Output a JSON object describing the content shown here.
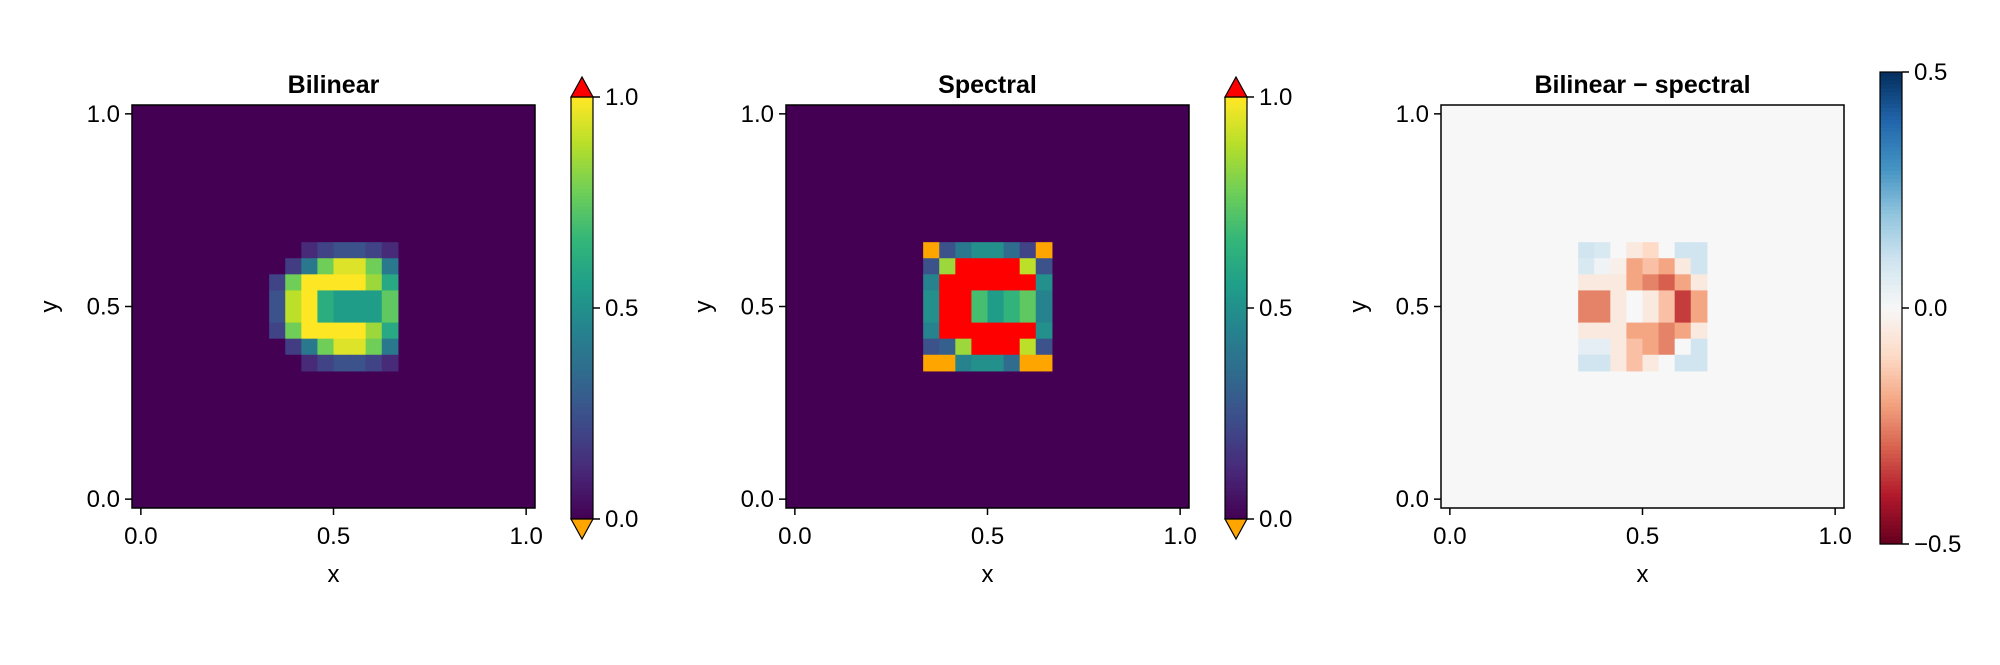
{
  "colors": {
    "background": "#ffffff",
    "viridis_low": "#440154",
    "viridis_high": "#fde725",
    "lowclip": "#ffa500",
    "highclip": "#ff0000",
    "rdbu_low": "#67001f",
    "rdbu_mid": "#f7f7f7",
    "rdbu_high": "#053061"
  },
  "chart_data": [
    {
      "type": "heatmap",
      "title": "Bilinear",
      "xlabel": "x",
      "ylabel": "y",
      "xlim": [
        0,
        1
      ],
      "ylim": [
        0,
        1
      ],
      "xticks": [
        "0.0",
        "0.5",
        "1.0"
      ],
      "yticks": [
        "0.0",
        "0.5",
        "1.0"
      ],
      "grid": false,
      "colormap": "viridis",
      "colorrange": [
        0,
        1
      ],
      "colorbar_ticks": [
        "0.0",
        "0.5",
        "1.0"
      ],
      "colorbar_clip_markers": true,
      "block_x_range": [
        0.333,
        0.667
      ],
      "block_y_range": [
        0.333,
        0.667
      ],
      "values": [
        [
          0.0,
          0.0,
          0.12,
          0.2,
          0.25,
          0.25,
          0.2,
          0.12
        ],
        [
          0.0,
          0.18,
          0.4,
          0.78,
          0.95,
          0.95,
          0.78,
          0.4
        ],
        [
          0.2,
          0.78,
          1.0,
          1.0,
          1.0,
          1.0,
          0.85,
          0.6
        ],
        [
          0.25,
          0.9,
          1.0,
          0.62,
          0.55,
          0.55,
          0.55,
          0.75
        ],
        [
          0.25,
          0.9,
          1.0,
          0.62,
          0.55,
          0.55,
          0.55,
          0.75
        ],
        [
          0.2,
          0.78,
          1.0,
          1.0,
          1.0,
          1.0,
          0.85,
          0.6
        ],
        [
          0.0,
          0.18,
          0.4,
          0.78,
          0.95,
          0.95,
          0.78,
          0.4
        ],
        [
          0.0,
          0.0,
          0.12,
          0.2,
          0.25,
          0.25,
          0.2,
          0.12
        ]
      ]
    },
    {
      "type": "heatmap",
      "title": "Spectral",
      "xlabel": "x",
      "ylabel": "y",
      "xlim": [
        0,
        1
      ],
      "ylim": [
        0,
        1
      ],
      "xticks": [
        "0.0",
        "0.5",
        "1.0"
      ],
      "yticks": [
        "0.0",
        "0.5",
        "1.0"
      ],
      "grid": false,
      "colormap": "viridis",
      "colorrange": [
        0,
        1
      ],
      "colorbar_ticks": [
        "0.0",
        "0.5",
        "1.0"
      ],
      "colorbar_clip_markers": true,
      "block_x_range": [
        0.333,
        0.667
      ],
      "block_y_range": [
        0.333,
        0.667
      ],
      "values": [
        [
          -0.1,
          0.25,
          0.4,
          0.5,
          0.5,
          0.35,
          0.2,
          -0.1
        ],
        [
          0.25,
          0.85,
          1.2,
          1.2,
          1.1,
          1.2,
          0.9,
          0.25
        ],
        [
          0.45,
          1.2,
          1.2,
          1.2,
          1.2,
          1.2,
          1.2,
          0.5
        ],
        [
          0.5,
          1.2,
          1.2,
          0.7,
          0.55,
          0.65,
          0.75,
          0.45
        ],
        [
          0.5,
          1.2,
          1.2,
          0.7,
          0.55,
          0.65,
          0.75,
          0.45
        ],
        [
          0.45,
          1.2,
          1.2,
          1.2,
          1.2,
          1.2,
          1.2,
          0.5
        ],
        [
          0.25,
          0.3,
          0.85,
          1.2,
          1.2,
          1.2,
          0.9,
          0.25
        ],
        [
          -0.1,
          -0.1,
          0.45,
          0.5,
          0.5,
          0.35,
          -0.1,
          -0.1
        ]
      ]
    },
    {
      "type": "heatmap",
      "title": "Bilinear − spectral",
      "xlabel": "x",
      "ylabel": "y",
      "xlim": [
        0,
        1
      ],
      "ylim": [
        0,
        1
      ],
      "xticks": [
        "0.0",
        "0.5",
        "1.0"
      ],
      "yticks": [
        "0.0",
        "0.5",
        "1.0"
      ],
      "grid": false,
      "colormap": "RdBu",
      "colorrange": [
        -0.5,
        0.5
      ],
      "colorbar_ticks": [
        "−0.5",
        "0.0",
        "0.5"
      ],
      "colorbar_clip_markers": false,
      "block_x_range": [
        0.333,
        0.667
      ],
      "block_y_range": [
        0.333,
        0.667
      ],
      "values": [
        [
          0.1,
          0.08,
          0.0,
          -0.05,
          -0.1,
          0.0,
          0.1,
          0.1
        ],
        [
          0.08,
          0.02,
          -0.03,
          -0.2,
          -0.15,
          -0.2,
          -0.05,
          0.1
        ],
        [
          -0.05,
          -0.05,
          -0.05,
          -0.2,
          -0.25,
          -0.3,
          -0.2,
          -0.05
        ],
        [
          -0.25,
          -0.25,
          -0.05,
          0.0,
          -0.05,
          -0.15,
          -0.35,
          -0.2
        ],
        [
          -0.25,
          -0.25,
          -0.05,
          0.0,
          -0.05,
          -0.15,
          -0.35,
          -0.2
        ],
        [
          -0.05,
          -0.05,
          -0.05,
          -0.2,
          -0.2,
          -0.25,
          -0.2,
          -0.05
        ],
        [
          0.05,
          0.05,
          -0.05,
          -0.15,
          -0.2,
          -0.25,
          0.0,
          0.1
        ],
        [
          0.1,
          0.1,
          -0.05,
          -0.15,
          -0.05,
          0.0,
          0.1,
          0.1
        ]
      ]
    }
  ]
}
